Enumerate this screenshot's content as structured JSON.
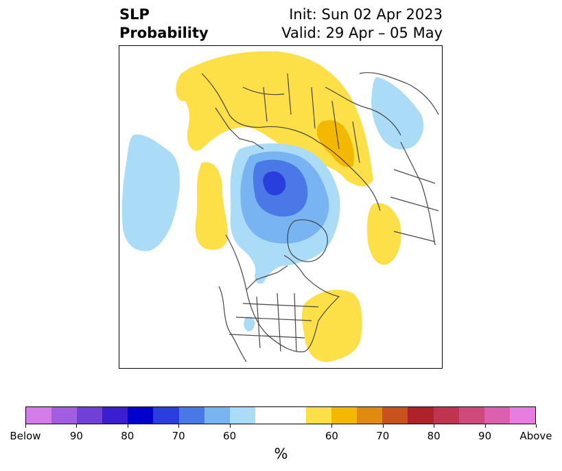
{
  "title": {
    "variable": "SLP",
    "product": "Probability",
    "init": "Init: Sun 02 Apr 2023",
    "valid": "Valid: 29 Apr – 05 May"
  },
  "colorbar": {
    "unit": "%",
    "segments": [
      {
        "color": "#d37ee8"
      },
      {
        "color": "#a25ee0"
      },
      {
        "color": "#7040d8"
      },
      {
        "color": "#3a1ed0"
      },
      {
        "color": "#0000cc"
      },
      {
        "color": "#2a3ede"
      },
      {
        "color": "#4a78e6"
      },
      {
        "color": "#78b4f2"
      },
      {
        "color": "#aadcf8"
      },
      {
        "color": "#ffffff",
        "wide": true
      },
      {
        "color": "#fde047"
      },
      {
        "color": "#f4b800"
      },
      {
        "color": "#e08a10"
      },
      {
        "color": "#c8521c"
      },
      {
        "color": "#b0222a"
      },
      {
        "color": "#c03450"
      },
      {
        "color": "#cf4a7c"
      },
      {
        "color": "#dc60ae"
      },
      {
        "color": "#e87ce0"
      }
    ],
    "ticks": [
      "Below",
      "90",
      "80",
      "70",
      "60",
      "60",
      "70",
      "80",
      "90",
      "Above"
    ]
  },
  "map": {
    "projection": "north-polar stereographic",
    "colors": {
      "land_outline": "#444444",
      "below_60": "#aadcf8",
      "below_70": "#78b4f2",
      "below_80": "#4a78e6",
      "below_90": "#2a3ede",
      "above_60": "#fde047",
      "above_70": "#f4b800"
    }
  }
}
